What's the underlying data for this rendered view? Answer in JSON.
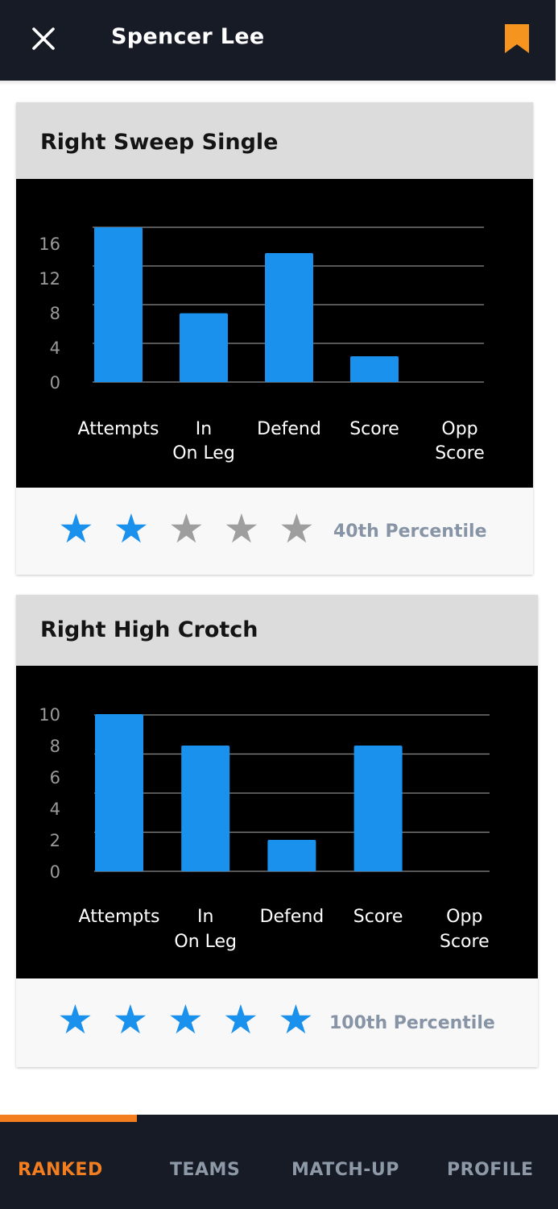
{
  "header": {
    "title": "Spencer Lee",
    "close_icon": "close-icon",
    "bookmark_icon": "bookmark-icon"
  },
  "cards": [
    {
      "title": "Right Sweep Single",
      "chart_data": {
        "type": "bar",
        "categories": [
          "Attempts",
          "In On Leg",
          "Defend",
          "Score",
          "Opp Score"
        ],
        "category_lines": [
          [
            "Attempts"
          ],
          [
            "In",
            "On Leg"
          ],
          [
            "Defend"
          ],
          [
            "Score"
          ],
          [
            "Opp",
            "Score"
          ]
        ],
        "values": [
          18,
          8,
          15,
          3,
          0
        ],
        "yticks": [
          "0",
          "4",
          "8",
          "12",
          "16"
        ],
        "ylim": [
          0,
          18
        ],
        "grid": true,
        "bar_color": "#1a91ec"
      },
      "stars_filled": 2,
      "stars_total": 5,
      "percentile": "40th Percentile"
    },
    {
      "title": "Right High Crotch",
      "chart_data": {
        "type": "bar",
        "categories": [
          "Attempts",
          "In On Leg",
          "Defend",
          "Score",
          "Opp Score"
        ],
        "category_lines": [
          [
            "Attempts"
          ],
          [
            "In",
            "On Leg"
          ],
          [
            "Defend"
          ],
          [
            "Score"
          ],
          [
            "Opp",
            "Score"
          ]
        ],
        "values": [
          10,
          8,
          2,
          8,
          0
        ],
        "yticks": [
          "0",
          "2",
          "4",
          "6",
          "8",
          "10"
        ],
        "ylim": [
          0,
          10
        ],
        "grid": true,
        "bar_color": "#1a91ec"
      },
      "stars_filled": 5,
      "stars_total": 5,
      "percentile": "100th Percentile"
    }
  ],
  "nav": {
    "items": [
      "RANKED",
      "TEAMS",
      "MATCH-UP",
      "PROFILE"
    ],
    "active_index": 0
  },
  "colors": {
    "accent": "#f37e1f",
    "header_bg": "#171b26",
    "star_filled": "#1a91ec",
    "star_empty": "#9e9e9e",
    "nav_inactive": "#8e99a8"
  }
}
